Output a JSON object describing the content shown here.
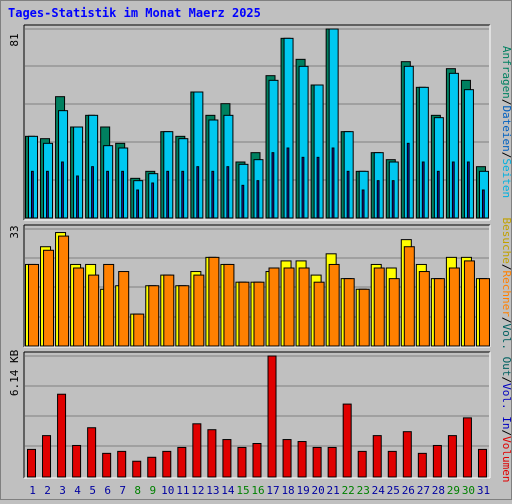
{
  "title": "Tages-Statistik im Monat Maerz 2025",
  "colors": {
    "anfragen": "#008060",
    "dateien": "#00c8f0",
    "seiten": "#1a1ab0",
    "besuche": "#ffff00",
    "rechner": "#ff8000",
    "kbytes": "#e00000",
    "weekend_day": "#008000",
    "weekday": "#0000a0"
  },
  "right_legend_1": {
    "anfragen": "Anfragen",
    "sep1": "/",
    "dateien": "Dateien",
    "sep2": "/",
    "seiten": "Seiten"
  },
  "right_legend_2": {
    "besuche": "Besuche",
    "sep1": "/",
    "rechner": "Rechner",
    "sep2": "/",
    "vol_out": "Vol. Out",
    "sep3": "/",
    "vol_in": "Vol. In",
    "sep4": "/",
    "volumen": "Volumen"
  },
  "chart_data": [
    {
      "type": "bar",
      "panel": "requests",
      "max_label": "81",
      "ylim": [
        0,
        81
      ],
      "categories": [
        "1",
        "2",
        "3",
        "4",
        "5",
        "6",
        "7",
        "8",
        "9",
        "10",
        "11",
        "12",
        "13",
        "14",
        "15",
        "16",
        "17",
        "18",
        "19",
        "20",
        "21",
        "22",
        "23",
        "24",
        "25",
        "26",
        "27",
        "28",
        "29",
        "30",
        "31"
      ],
      "weekend": [
        false,
        false,
        false,
        false,
        false,
        false,
        false,
        true,
        true,
        false,
        false,
        false,
        false,
        false,
        true,
        true,
        false,
        false,
        false,
        false,
        false,
        true,
        true,
        false,
        false,
        false,
        false,
        false,
        true,
        true,
        false
      ],
      "series": [
        {
          "name": "Anfragen",
          "values": [
            35,
            34,
            52,
            39,
            44,
            39,
            32,
            17,
            20,
            37,
            35,
            54,
            44,
            49,
            24,
            28,
            61,
            77,
            68,
            57,
            81,
            37,
            20,
            28,
            25,
            67,
            56,
            44,
            64,
            59,
            22
          ]
        },
        {
          "name": "Dateien",
          "values": [
            35,
            32,
            46,
            39,
            44,
            31,
            30,
            16,
            19,
            37,
            34,
            54,
            42,
            44,
            23,
            25,
            59,
            77,
            65,
            57,
            81,
            37,
            20,
            28,
            24,
            65,
            56,
            43,
            62,
            55,
            20
          ]
        },
        {
          "name": "Seiten",
          "values": [
            20,
            20,
            24,
            18,
            22,
            20,
            20,
            12,
            15,
            20,
            20,
            22,
            20,
            22,
            14,
            16,
            28,
            30,
            26,
            26,
            30,
            20,
            12,
            16,
            16,
            32,
            24,
            20,
            24,
            24,
            12
          ]
        }
      ]
    },
    {
      "type": "bar",
      "panel": "visits",
      "max_label": "33",
      "ylim": [
        0,
        33
      ],
      "categories": [
        "1",
        "2",
        "3",
        "4",
        "5",
        "6",
        "7",
        "8",
        "9",
        "10",
        "11",
        "12",
        "13",
        "14",
        "15",
        "16",
        "17",
        "18",
        "19",
        "20",
        "21",
        "22",
        "23",
        "24",
        "25",
        "26",
        "27",
        "28",
        "29",
        "30",
        "31"
      ],
      "series": [
        {
          "name": "Besuche",
          "values": [
            23,
            28,
            32,
            23,
            23,
            16,
            17,
            9,
            17,
            20,
            17,
            21,
            25,
            23,
            18,
            18,
            21,
            24,
            24,
            20,
            26,
            19,
            16,
            23,
            22,
            30,
            23,
            19,
            25,
            25,
            19
          ]
        },
        {
          "name": "Rechner",
          "values": [
            23,
            27,
            31,
            22,
            20,
            23,
            21,
            9,
            17,
            20,
            17,
            20,
            25,
            23,
            18,
            18,
            22,
            22,
            22,
            18,
            23,
            19,
            16,
            22,
            19,
            28,
            21,
            19,
            22,
            24,
            19
          ]
        }
      ]
    },
    {
      "type": "bar",
      "panel": "volume",
      "max_label": "6.14 KB",
      "ylim": [
        0,
        6.14
      ],
      "categories": [
        "1",
        "2",
        "3",
        "4",
        "5",
        "6",
        "7",
        "8",
        "9",
        "10",
        "11",
        "12",
        "13",
        "14",
        "15",
        "16",
        "17",
        "18",
        "19",
        "20",
        "21",
        "22",
        "23",
        "24",
        "25",
        "26",
        "27",
        "28",
        "29",
        "30",
        "31"
      ],
      "series": [
        {
          "name": "Volumen",
          "values": [
            1.4,
            2.1,
            4.2,
            1.6,
            2.5,
            1.2,
            1.3,
            0.8,
            1.0,
            1.3,
            1.5,
            2.7,
            2.4,
            1.9,
            1.5,
            1.7,
            6.14,
            1.9,
            1.8,
            1.5,
            1.5,
            3.7,
            1.3,
            2.1,
            1.3,
            2.3,
            1.2,
            1.6,
            2.1,
            3.0,
            1.4
          ]
        }
      ]
    }
  ]
}
